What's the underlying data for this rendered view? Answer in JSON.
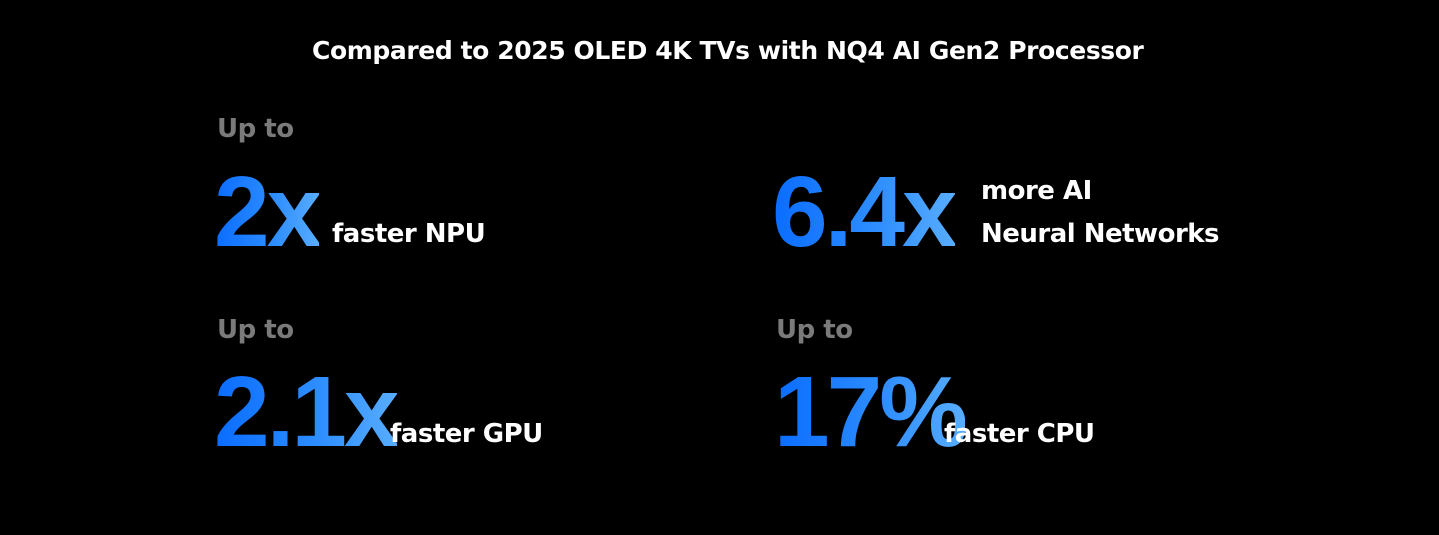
{
  "title": "Compared to 2025 OLED 4K TVs with NQ4 AI Gen2 Processor",
  "stats": [
    {
      "prefix": "Up to",
      "value": "2x",
      "label": "faster NPU"
    },
    {
      "prefix": "",
      "value": "6.4x",
      "label_line1": "more AI",
      "label_line2": "Neural Networks"
    },
    {
      "prefix": "Up to",
      "value": "2.1x",
      "label": "faster GPU"
    },
    {
      "prefix": "Up to",
      "value": "17%",
      "label": "faster CPU"
    }
  ],
  "colors": {
    "background": "#000000",
    "accent": "#1a7bff",
    "prefix": "#7a7a7a",
    "text": "#ffffff"
  }
}
